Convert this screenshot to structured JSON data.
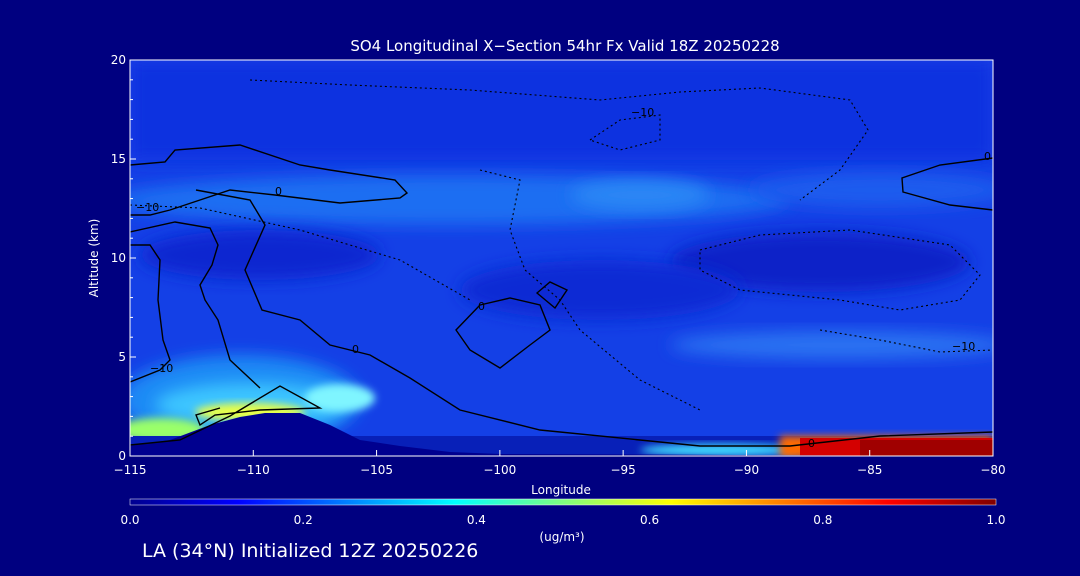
{
  "chart_data": {
    "type": "heatmap",
    "title": "SO4 Longitudinal X−Section 54hr  Fx Valid 18Z 20250228",
    "xlabel": "Longitude",
    "ylabel": "Altitude (km)",
    "xlim": [
      -115,
      -80
    ],
    "ylim": [
      0,
      20
    ],
    "x_ticks": [
      "−115",
      "−110",
      "−105",
      "−100",
      "−95",
      "−90",
      "−85",
      "−80"
    ],
    "y_ticks": [
      "0",
      "5",
      "10",
      "15",
      "20"
    ],
    "colorbar": {
      "label": "(ug/m³)",
      "min": 0.0,
      "max": 1.0,
      "tick_labels": [
        "0.0",
        "0.2",
        "0.4",
        "0.6",
        "0.8",
        "1.0"
      ]
    },
    "contour_labels": [
      "0",
      "0",
      "0",
      "0",
      "0",
      "−10",
      "−10",
      "−10",
      "−10"
    ],
    "background_so4": 0.12,
    "features": [
      {
        "lon_range": [
          -112.5,
          -104
        ],
        "alt_range": [
          1.5,
          3.5
        ],
        "value": 0.65,
        "note": "mountain plume"
      },
      {
        "lon_range": [
          -108,
          -104
        ],
        "alt_range": [
          2.0,
          3.3
        ],
        "value": 0.45
      },
      {
        "lon_range": [
          -115,
          -111
        ],
        "alt_range": [
          0.3,
          1.2
        ],
        "value": 0.55
      },
      {
        "lon_range": [
          -95,
          -89
        ],
        "alt_range": [
          0.0,
          0.6
        ],
        "value": 0.4
      },
      {
        "lon_range": [
          -89,
          -80
        ],
        "alt_range": [
          0.3,
          0.9
        ],
        "value": 1.0,
        "note": "surface maximum"
      },
      {
        "lon_range": [
          -115,
          -80
        ],
        "alt_range": [
          12,
          15
        ],
        "value": 0.2
      }
    ]
  },
  "footer": {
    "text": "LA (34°N) Initialized 12Z 20250226"
  }
}
